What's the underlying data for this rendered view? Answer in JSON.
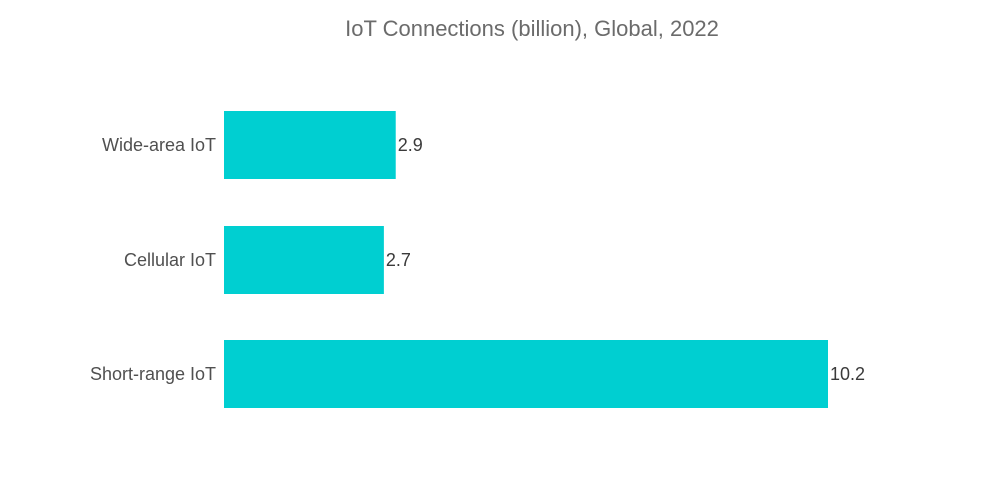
{
  "chart_data": {
    "type": "bar",
    "orientation": "horizontal",
    "title": "IoT Connections (billion), Global, 2022",
    "categories": [
      "Wide-area IoT",
      "Cellular IoT",
      "Short-range IoT"
    ],
    "values": [
      2.9,
      2.7,
      10.2
    ],
    "value_labels": [
      "2.9",
      "2.7",
      "10.2"
    ],
    "xlabel": "",
    "ylabel": "",
    "xlim": [
      0,
      10.2
    ],
    "grid": false,
    "legend": "none",
    "bar_color": "#00cfd1"
  }
}
